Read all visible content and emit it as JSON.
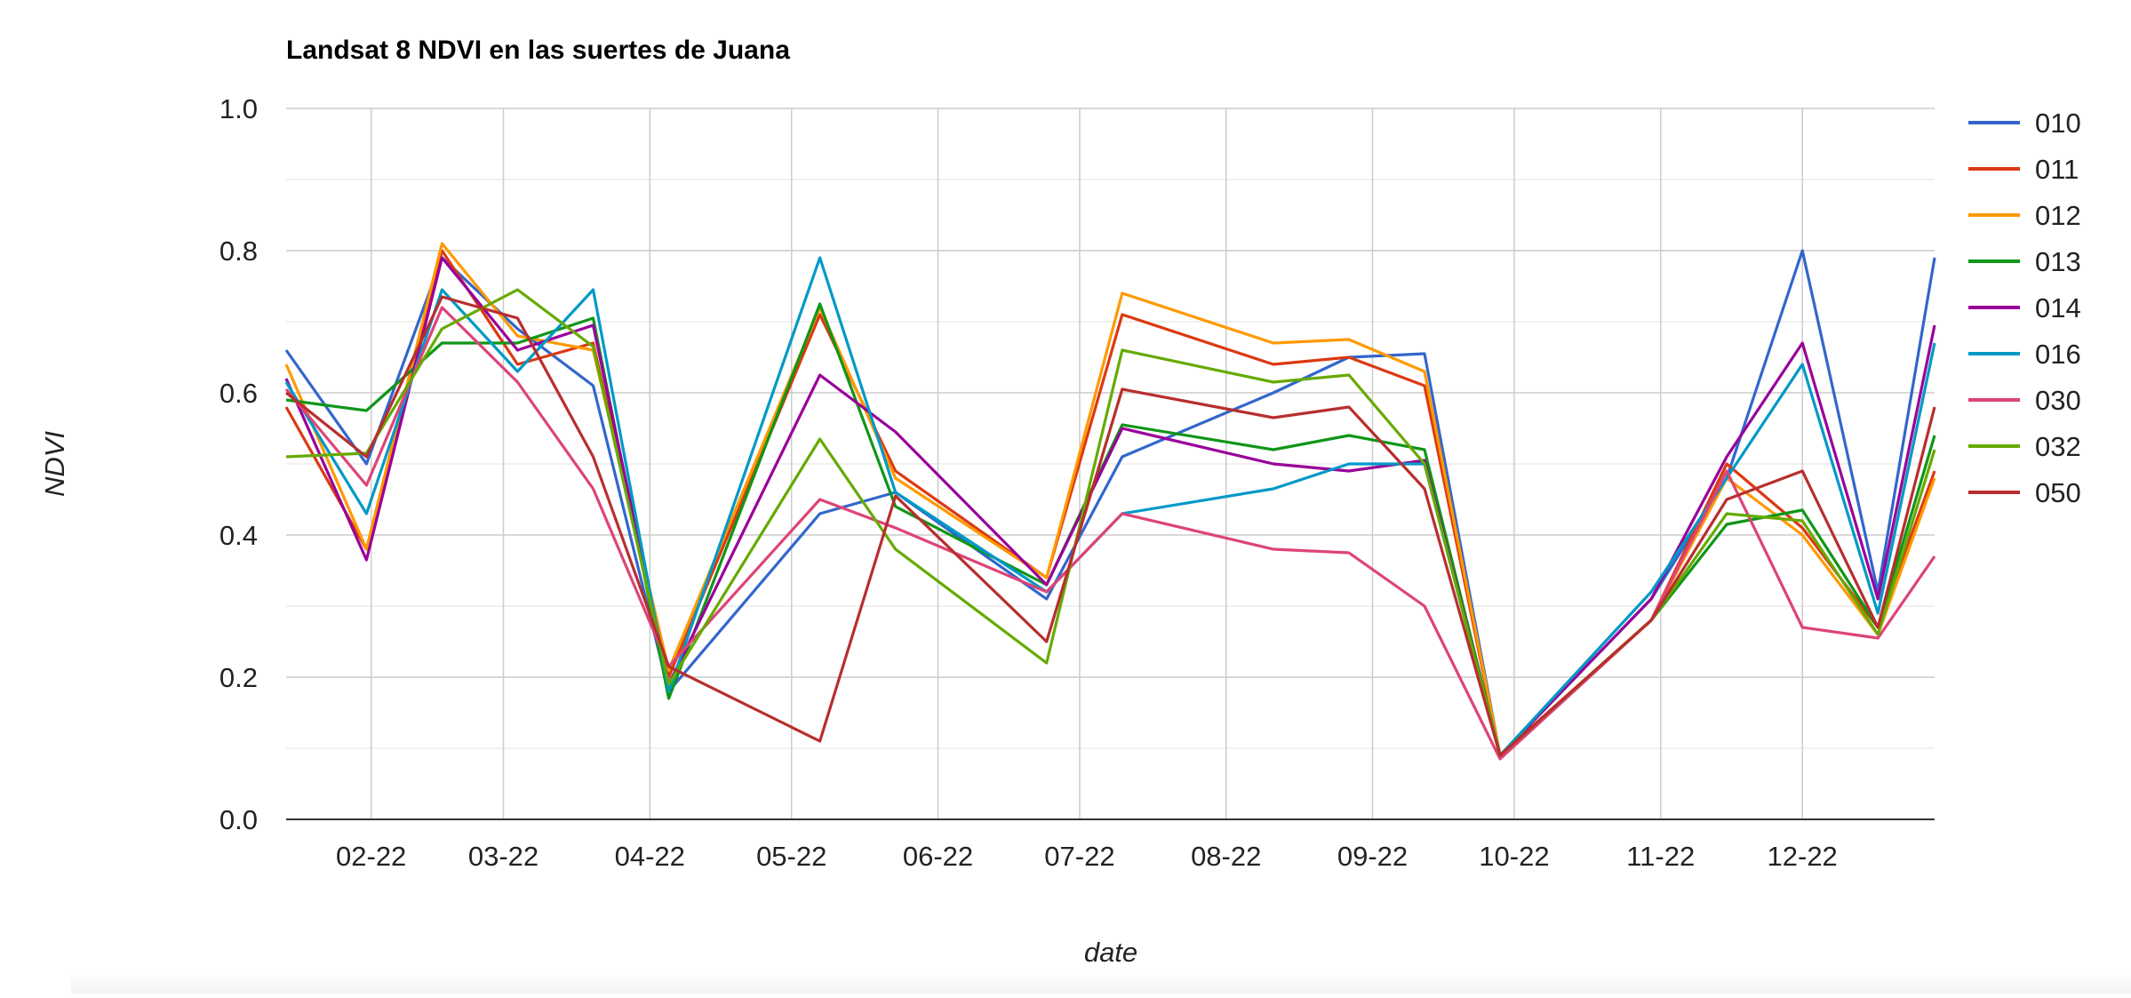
{
  "chart_data": {
    "type": "line",
    "title": "Landsat 8 NDVI en las suertes de Juana",
    "xlabel": "date",
    "ylabel": "NDVI",
    "ylim": [
      0,
      1
    ],
    "yticks": [
      "0.0",
      "0.2",
      "0.4",
      "0.6",
      "0.8",
      "1.0"
    ],
    "xlim": [
      "2022-01-14",
      "2022-12-29"
    ],
    "xticks": [
      {
        "date": "2022-02-01",
        "label": "02-22"
      },
      {
        "date": "2022-03-01",
        "label": "03-22"
      },
      {
        "date": "2022-04-01",
        "label": "04-22"
      },
      {
        "date": "2022-05-01",
        "label": "05-22"
      },
      {
        "date": "2022-06-01",
        "label": "06-22"
      },
      {
        "date": "2022-07-01",
        "label": "07-22"
      },
      {
        "date": "2022-08-01",
        "label": "08-22"
      },
      {
        "date": "2022-09-01",
        "label": "09-22"
      },
      {
        "date": "2022-10-01",
        "label": "10-22"
      },
      {
        "date": "2022-11-01",
        "label": "11-22"
      },
      {
        "date": "2022-12-01",
        "label": "12-22"
      }
    ],
    "grid": true,
    "legend_position": "right",
    "dates": [
      "2022-01-14",
      "2022-01-31",
      "2022-02-16",
      "2022-03-04",
      "2022-03-20",
      "2022-04-05",
      "2022-05-07",
      "2022-05-23",
      "2022-06-24",
      "2022-07-10",
      "2022-08-11",
      "2022-08-27",
      "2022-09-12",
      "2022-09-28",
      "2022-10-30",
      "2022-11-15",
      "2022-12-01",
      "2022-12-17",
      "2022-12-29"
    ],
    "series": [
      {
        "name": "010",
        "color": "#3366cc",
        "values": [
          0.66,
          0.5,
          0.79,
          0.69,
          0.61,
          0.18,
          0.43,
          0.46,
          0.31,
          0.51,
          0.6,
          0.65,
          0.655,
          0.09,
          0.31,
          0.48,
          0.8,
          0.32,
          0.79
        ]
      },
      {
        "name": "011",
        "color": "#dc3912",
        "values": [
          0.58,
          0.38,
          0.8,
          0.64,
          0.67,
          0.2,
          0.71,
          0.49,
          0.34,
          0.71,
          0.64,
          0.65,
          0.61,
          0.09,
          0.28,
          0.5,
          0.41,
          0.27,
          0.49
        ]
      },
      {
        "name": "012",
        "color": "#ff9900",
        "values": [
          0.64,
          0.38,
          0.81,
          0.68,
          0.66,
          0.21,
          0.72,
          0.48,
          0.34,
          0.74,
          0.67,
          0.675,
          0.63,
          0.09,
          0.28,
          0.48,
          0.4,
          0.26,
          0.48
        ]
      },
      {
        "name": "013",
        "color": "#109618",
        "values": [
          0.59,
          0.575,
          0.67,
          0.67,
          0.705,
          0.17,
          0.725,
          0.44,
          0.33,
          0.555,
          0.52,
          0.54,
          0.52,
          0.09,
          0.28,
          0.415,
          0.435,
          0.27,
          0.54
        ]
      },
      {
        "name": "014",
        "color": "#990099",
        "values": [
          0.62,
          0.365,
          0.79,
          0.66,
          0.695,
          0.19,
          0.625,
          0.545,
          0.33,
          0.55,
          0.5,
          0.49,
          0.505,
          0.09,
          0.31,
          0.51,
          0.67,
          0.31,
          0.695
        ]
      },
      {
        "name": "016",
        "color": "#0099c6",
        "values": [
          0.615,
          0.43,
          0.745,
          0.63,
          0.745,
          0.18,
          0.79,
          0.46,
          0.32,
          0.43,
          0.465,
          0.5,
          0.5,
          0.09,
          0.32,
          0.48,
          0.64,
          0.29,
          0.67
        ]
      },
      {
        "name": "030",
        "color": "#dd4477",
        "values": [
          0.605,
          0.47,
          0.72,
          0.615,
          0.465,
          0.215,
          0.45,
          0.41,
          0.32,
          0.43,
          0.38,
          0.375,
          0.3,
          0.085,
          0.28,
          0.49,
          0.27,
          0.255,
          0.37
        ]
      },
      {
        "name": "032",
        "color": "#66aa00",
        "values": [
          0.51,
          0.515,
          0.69,
          0.745,
          0.665,
          0.19,
          0.535,
          0.38,
          0.22,
          0.66,
          0.615,
          0.625,
          0.5,
          0.09,
          0.28,
          0.43,
          0.42,
          0.26,
          0.52
        ]
      },
      {
        "name": "050",
        "color": "#b82e2e",
        "values": [
          0.6,
          0.51,
          0.735,
          0.705,
          0.51,
          0.215,
          0.11,
          0.455,
          0.25,
          0.605,
          0.565,
          0.58,
          0.465,
          0.09,
          0.28,
          0.45,
          0.49,
          0.27,
          0.58
        ]
      }
    ]
  }
}
